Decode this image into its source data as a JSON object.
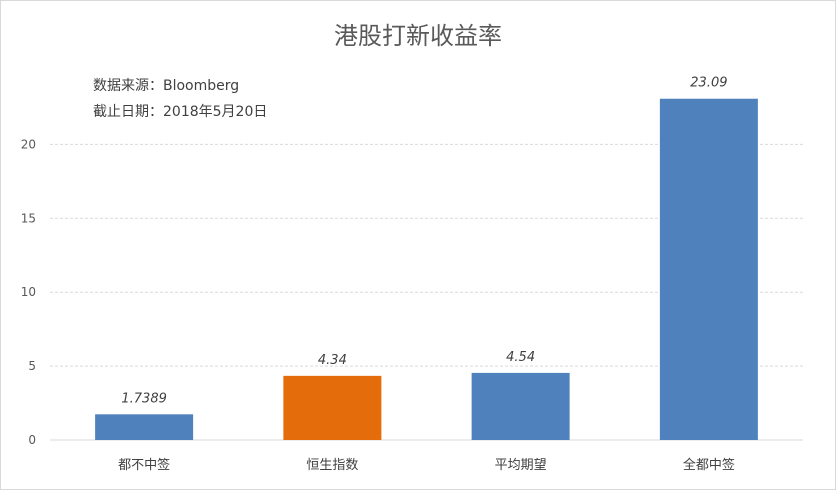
{
  "chart_data": {
    "type": "bar",
    "title": "港股打新收益率",
    "annotations": [
      "数据来源：Bloomberg",
      "截止日期：2018年5月20日"
    ],
    "categories": [
      "都不中签",
      "恒生指数",
      "平均期望",
      "全都中签"
    ],
    "values": [
      1.7389,
      4.34,
      4.54,
      23.09
    ],
    "data_labels": [
      "1.7389",
      "4.34",
      "4.54",
      "23.09"
    ],
    "bar_colors": [
      "#4f81bd",
      "#e46c0a",
      "#4f81bd",
      "#4f81bd"
    ],
    "ylim": [
      0,
      25
    ],
    "yticks": [
      0,
      5,
      10,
      15,
      20
    ],
    "ytick_labels": [
      "0",
      "5",
      "10",
      "15",
      "20"
    ],
    "xlabel": "",
    "ylabel": "",
    "grid": true,
    "legend": "none"
  }
}
